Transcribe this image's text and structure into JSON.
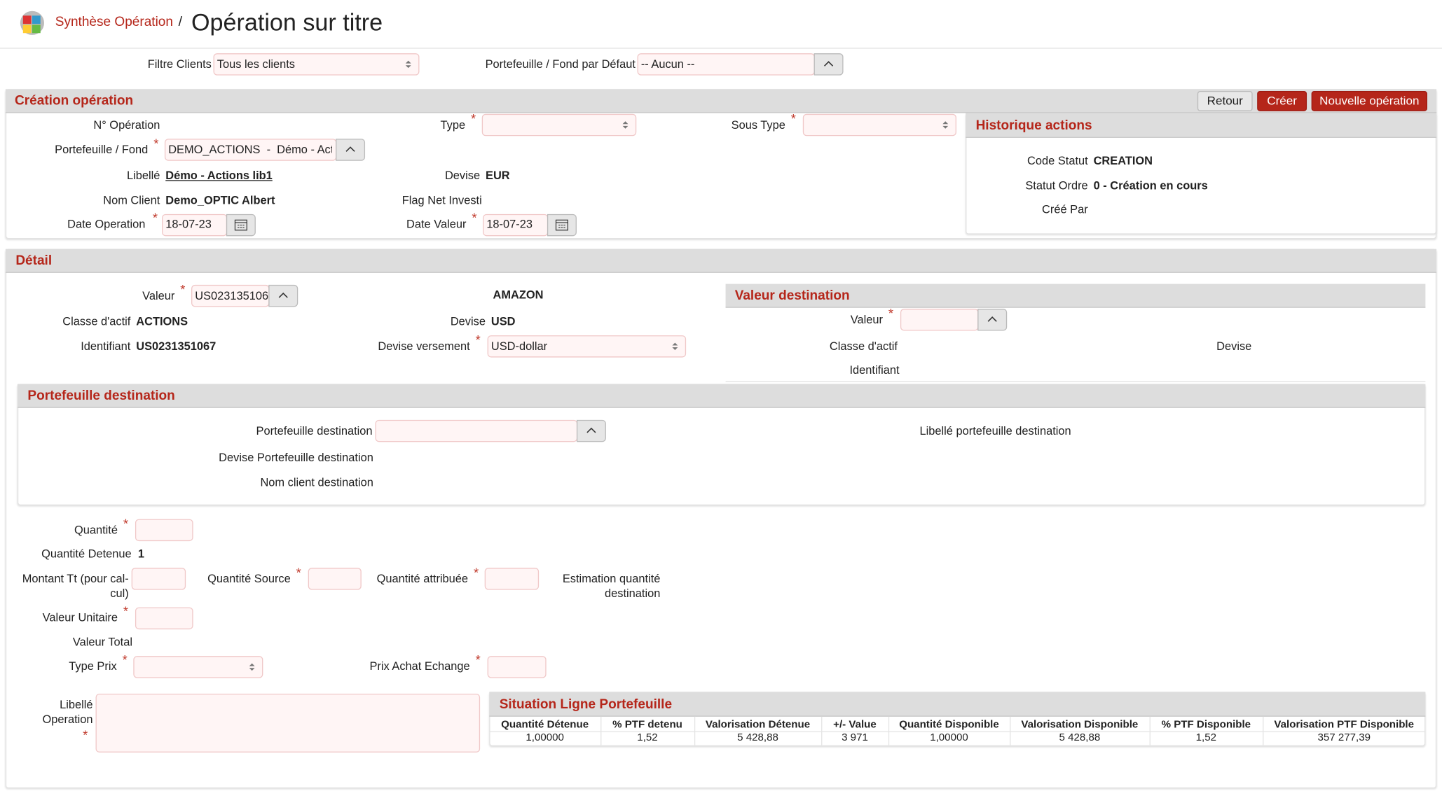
{
  "header": {
    "breadcrumb": "Synthèse Opération",
    "separator": "/",
    "title": "Opération sur titre"
  },
  "required": "*",
  "filters": {
    "clients_label": "Filtre Clients",
    "clients_value": "Tous les clients",
    "portfolio_label": "Portefeuille / Fond par Défaut",
    "portfolio_value": "-- Aucun --"
  },
  "creation": {
    "title": "Création opération",
    "buttons": [
      "Retour",
      "Créer",
      "Nouvelle opération"
    ],
    "op_number_label": "N° Opération",
    "portfolio_label": "Portefeuille / Fond",
    "portfolio_value": "DEMO_ACTIONS  -  Démo - Acti",
    "libelle_label": "Libellé",
    "libelle_value": "Démo - Actions lib1",
    "client_label": "Nom Client",
    "client_value": "Demo_OPTIC Albert",
    "date_op_label": "Date Operation",
    "date_op_value": "18-07-23",
    "type_label": "Type",
    "devise_label": "Devise",
    "devise_value": "EUR",
    "flag_label": "Flag Net Investi",
    "date_val_label": "Date Valeur",
    "date_val_value": "18-07-23",
    "subtype_label": "Sous Type"
  },
  "history": {
    "title": "Historique actions",
    "code_label": "Code Statut",
    "code_value": "CREATION",
    "status_label": "Statut Ordre",
    "status_value": "0 - Création en cours",
    "created_by_label": "Créé Par"
  },
  "detail": {
    "title": "Détail",
    "valeur_label": "Valeur",
    "valeur_value": "US023135106",
    "name": "AMAZON",
    "class_label": "Classe d'actif",
    "class_value": "ACTIONS",
    "id_label": "Identifiant",
    "id_value": "US0231351067",
    "devise_label": "Devise",
    "devise_value": "USD",
    "versement_label": "Devise versement",
    "versement_value": "USD-dollar"
  },
  "destination": {
    "title": "Valeur destination",
    "valeur_label": "Valeur",
    "class_label": "Classe d'actif",
    "devise_label": "Devise",
    "id_label": "Identifiant"
  },
  "portfolio_dest": {
    "title": "Portefeuille destination",
    "portfolio_label": "Portefeuille destination",
    "libelle_label": "Libellé portefeuille destination",
    "devise_label": "Devise Portefeuille destination",
    "client_label": "Nom client destination"
  },
  "quantities": {
    "quantite_label": "Quantité",
    "detenue_label": "Quantité Detenue",
    "detenue_value": "1",
    "montant_label": [
      "Montant Tt (pour cal-",
      "cul)"
    ],
    "source_label": "Quantité Source",
    "attribuee_label": "Quantité attribuée",
    "estimation_label": [
      "Estimation quantité",
      "destination"
    ],
    "unitaire_label": "Valeur Unitaire",
    "total_label": "Valeur Total",
    "type_prix_label": "Type Prix",
    "prix_achat_label": "Prix Achat Echange",
    "libelle_label": [
      "Libellé",
      "Operation"
    ]
  },
  "situation": {
    "title": "Situation Ligne Portefeuille",
    "columns": [
      "Quantité Détenue",
      "% PTF detenu",
      "Valorisation Détenue",
      "+/- Value",
      "Quantité Disponible",
      "Valorisation Disponible",
      "% PTF Disponible",
      "Valorisation PTF Disponible"
    ],
    "rows": [
      [
        "1,00000",
        "1,52",
        "5 428,88",
        "3 971",
        "1,00000",
        "5 428,88",
        "1,52",
        "357 277,39"
      ]
    ]
  }
}
